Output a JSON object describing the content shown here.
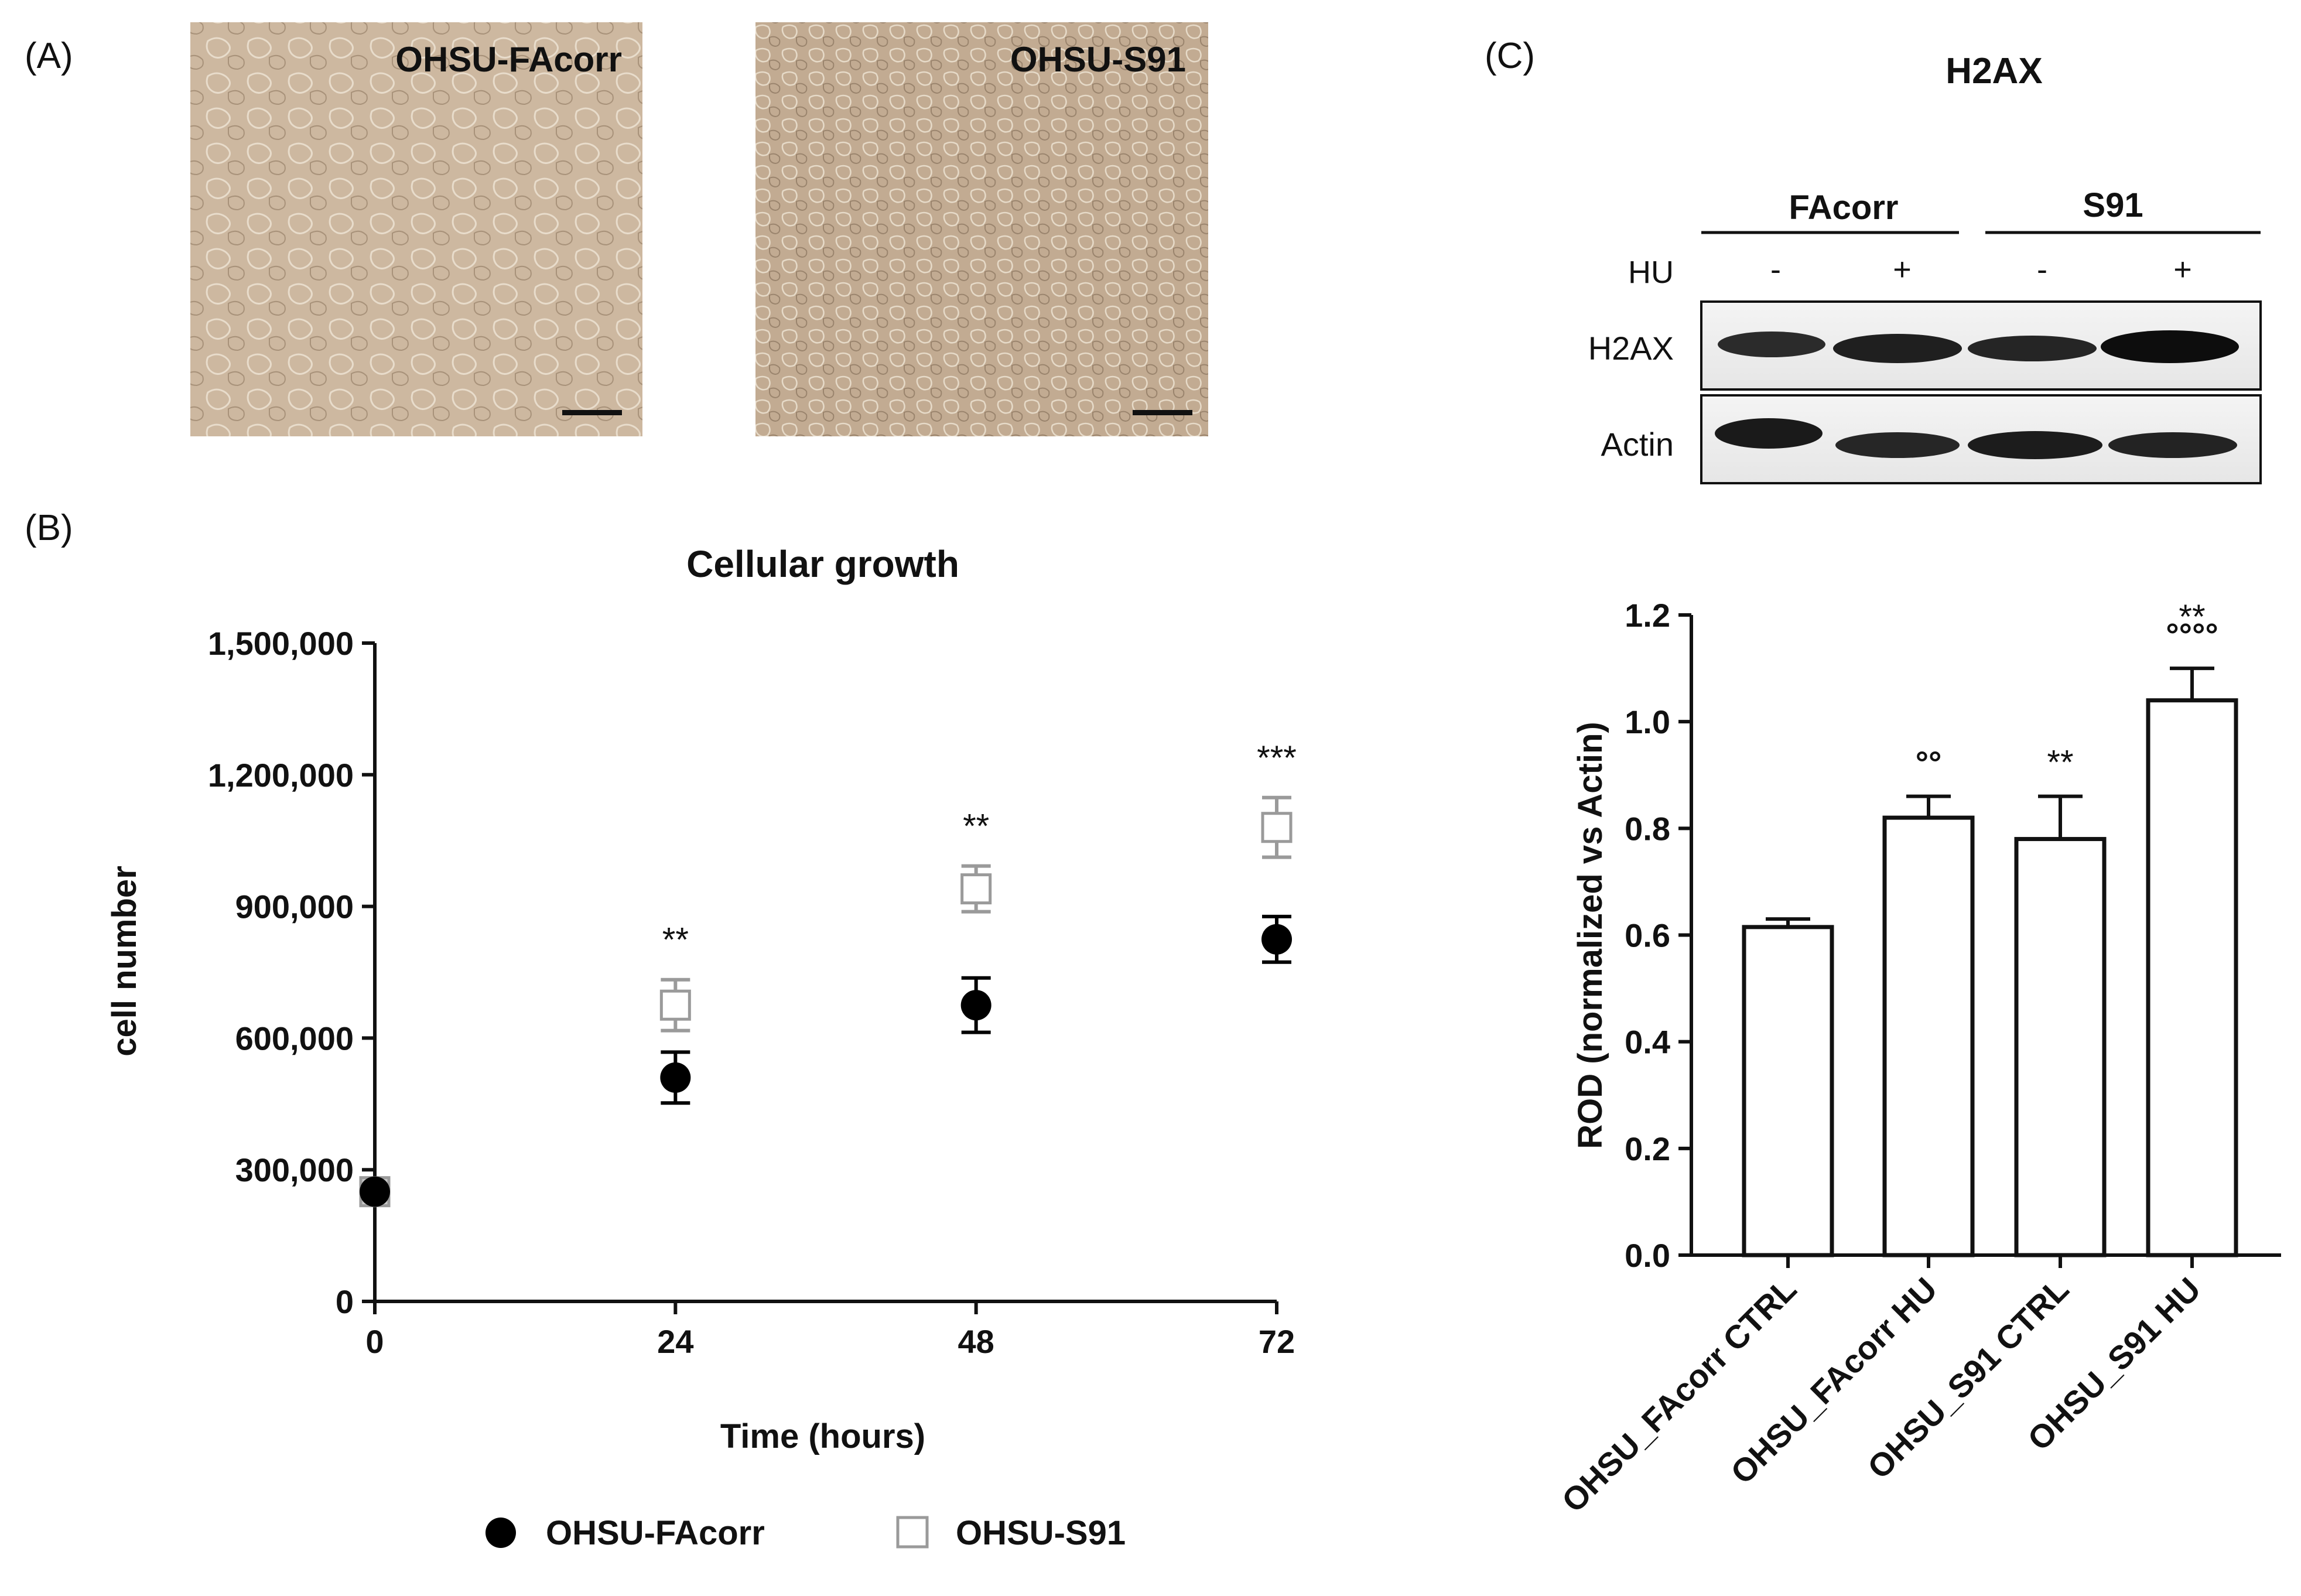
{
  "panels": {
    "a": {
      "label": "(A)",
      "images": [
        {
          "caption": "OHSU-FAcorr",
          "fill": "#cdb8a0"
        },
        {
          "caption": "OHSU-S91",
          "fill": "#c2ab92"
        }
      ]
    },
    "b": {
      "label": "(B)"
    },
    "c": {
      "label": "(C)",
      "blot": {
        "title": "H2AX",
        "groups": [
          "FAcorr",
          "S91"
        ],
        "hu_label": "HU",
        "hu_signs": [
          "-",
          "+",
          "-",
          "+"
        ],
        "rows": [
          "H2AX",
          "Actin"
        ]
      }
    }
  },
  "chart_data": [
    {
      "type": "scatter",
      "title": "Cellular growth",
      "xlabel": "Time (hours)",
      "ylabel": "cell number",
      "x": [
        0,
        24,
        48,
        72
      ],
      "x_ticks": [
        "0",
        "24",
        "48",
        "72"
      ],
      "y_ticks": [
        "0",
        "300,000",
        "600,000",
        "900,000",
        "1,200,000",
        "1,500,000"
      ],
      "xlim": [
        0,
        72
      ],
      "ylim": [
        0,
        1500000
      ],
      "series": [
        {
          "name": "OHSU-FAcorr",
          "marker": "filled-circle",
          "color": "#000000",
          "values": [
            250000,
            510000,
            675000,
            825000
          ],
          "errors": [
            0,
            58000,
            62000,
            52000
          ]
        },
        {
          "name": "OHSU-S91",
          "marker": "open-square",
          "color": "#9a9a9a",
          "values": [
            250000,
            675000,
            940000,
            1080000
          ],
          "errors": [
            0,
            58000,
            52000,
            68000
          ]
        }
      ],
      "annotations": [
        "",
        "**",
        "**",
        "***"
      ],
      "legend_position": "bottom"
    },
    {
      "type": "bar",
      "ylabel": "ROD (normalized vs Actin)",
      "categories": [
        "OHSU_FAcorr CTRL",
        "OHSU_FAcorr HU",
        "OHSU_S91 CTRL",
        "OHSU_S91 HU"
      ],
      "values": [
        0.615,
        0.82,
        0.78,
        1.04
      ],
      "errors": [
        0.015,
        0.04,
        0.08,
        0.06
      ],
      "annotations_star": [
        "",
        "",
        "**",
        "**"
      ],
      "annotations_circle": [
        "",
        "°°",
        "",
        "°°°°"
      ],
      "ylim": [
        0,
        1.2
      ],
      "y_ticks": [
        "0.0",
        "0.2",
        "0.4",
        "0.6",
        "0.8",
        "1.0",
        "1.2"
      ]
    }
  ]
}
